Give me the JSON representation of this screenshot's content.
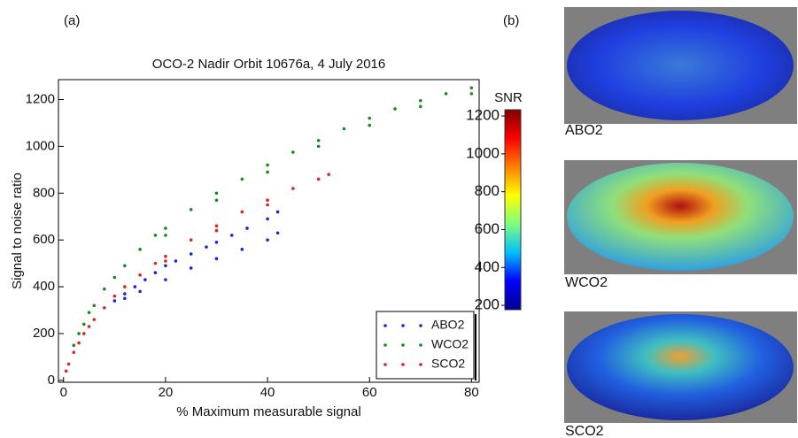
{
  "chart_data": [
    {
      "type": "scatter",
      "title": "OCO-2 Nadir Orbit 10676a, 4 July 2016",
      "xlabel": "% Maximum measurable signal",
      "ylabel": "Signal to  noise ratio",
      "xlim": [
        -1,
        81.5
      ],
      "ylim": [
        -8,
        1285
      ],
      "xticks": [
        0,
        20,
        40,
        60,
        80
      ],
      "yticks": [
        0,
        200,
        400,
        600,
        800,
        1000,
        1200
      ],
      "legend": "lower right",
      "series": [
        {
          "name": "ABO2",
          "color": "#1f1fe6",
          "x": [
            10,
            12,
            14,
            16,
            18,
            20,
            22,
            25,
            28,
            30,
            33,
            36,
            40,
            42,
            12,
            15,
            20,
            25,
            30,
            35,
            40,
            42
          ],
          "y": [
            340,
            370,
            400,
            430,
            460,
            490,
            510,
            540,
            570,
            590,
            620,
            650,
            690,
            720,
            350,
            380,
            430,
            480,
            520,
            560,
            600,
            630
          ]
        },
        {
          "name": "WCO2",
          "color": "#1a8a1a",
          "x": [
            2,
            3,
            4,
            5,
            6,
            8,
            10,
            12,
            15,
            18,
            20,
            25,
            30,
            35,
            40,
            45,
            50,
            55,
            60,
            65,
            70,
            75,
            80,
            20,
            30,
            40,
            50,
            60,
            70,
            80
          ],
          "y": [
            150,
            200,
            240,
            290,
            320,
            390,
            440,
            490,
            560,
            620,
            650,
            730,
            800,
            860,
            920,
            975,
            1025,
            1075,
            1120,
            1160,
            1195,
            1225,
            1250,
            620,
            770,
            890,
            1000,
            1090,
            1170,
            1225
          ]
        },
        {
          "name": "SCO2",
          "color": "#e61f1f",
          "x": [
            0.5,
            1,
            2,
            3,
            4,
            5,
            6,
            8,
            10,
            12,
            15,
            18,
            20,
            25,
            30,
            35,
            40,
            45,
            50,
            52,
            20,
            30,
            40
          ],
          "y": [
            40,
            70,
            120,
            160,
            200,
            230,
            260,
            310,
            360,
            400,
            450,
            500,
            530,
            600,
            660,
            720,
            770,
            820,
            860,
            880,
            510,
            640,
            750
          ]
        }
      ]
    },
    {
      "type": "colorbar",
      "title": "SNR",
      "ylim": [
        177,
        1233
      ],
      "yticks": [
        200,
        400,
        600,
        800,
        1000,
        1200
      ],
      "colors": [
        "#00008f",
        "#0000ff",
        "#00bfff",
        "#7fff7f",
        "#ffff00",
        "#ff7f00",
        "#ff0000",
        "#7f0000"
      ]
    }
  ],
  "panels": {
    "a": "(a)",
    "b": "(b)",
    "maps": [
      "ABO2",
      "WCO2",
      "SCO2"
    ]
  }
}
